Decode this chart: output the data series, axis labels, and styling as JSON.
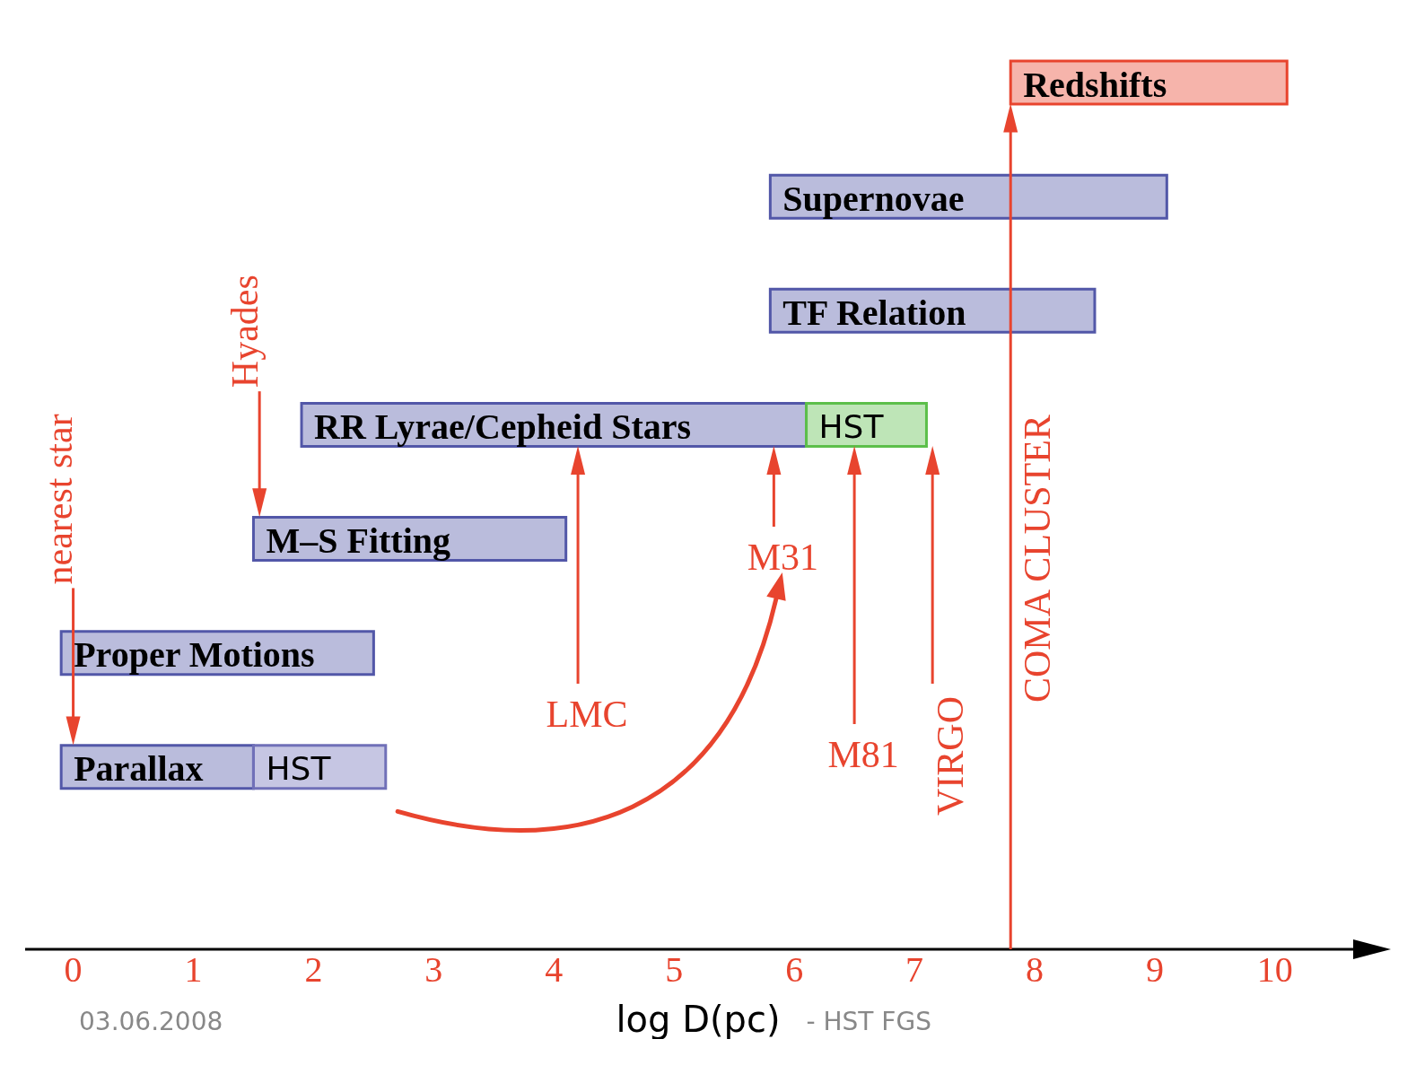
{
  "chart_data": {
    "type": "bar",
    "orientation": "horizontal",
    "xlabel": "log D(pc)",
    "categories": [
      "Redshifts",
      "Supernovae",
      "TF Relation",
      "RR Lyrae/Cepheid Stars",
      "M–S Fitting",
      "Proper Motions",
      "Parallax"
    ],
    "series": [
      {
        "colors": [
          "#e8442e",
          "#5257a8",
          "#5257a8",
          "#5257a8",
          "#5257a8",
          "#5257a8",
          "#5257a8"
        ],
        "values": [
          2.3,
          3.3,
          2.7,
          4.2,
          2.6,
          2.6,
          1.6
        ],
        "base": [
          7.8,
          5.8,
          5.8,
          1.9,
          1.5,
          -0.1,
          -0.1
        ]
      },
      {
        "name": "HST",
        "colors": [
          null,
          null,
          null,
          "#5cbf4a",
          null,
          null,
          "#7070b8"
        ],
        "values": [
          null,
          null,
          null,
          1.0,
          null,
          null,
          1.1
        ],
        "base": [
          null,
          null,
          null,
          6.1,
          null,
          null,
          1.5
        ]
      }
    ],
    "xlim": [
      -0.4,
      10.8
    ],
    "xticks": [
      0,
      1,
      2,
      3,
      4,
      5,
      6,
      7,
      8,
      9,
      10
    ],
    "ref_lines": [
      {
        "axis": "x",
        "value": 0,
        "label": "nearest star",
        "color": "#e8442e"
      },
      {
        "axis": "x",
        "value": 1.55,
        "label": "Hyades",
        "color": "#e8442e"
      },
      {
        "axis": "x",
        "value": 4.2,
        "label": "LMC",
        "color": "#e8442e"
      },
      {
        "axis": "x",
        "value": 5.83,
        "label": "M31",
        "color": "#e8442e"
      },
      {
        "axis": "x",
        "value": 6.5,
        "label": "M81",
        "color": "#e8442e"
      },
      {
        "axis": "x",
        "value": 7.15,
        "label": "VIRGO",
        "color": "#e8442e"
      },
      {
        "axis": "x",
        "value": 7.8,
        "label": "COMA CLUSTER",
        "color": "#e8442e"
      }
    ],
    "annotations": [
      "03.06.2008",
      "- HST FGS"
    ]
  }
}
